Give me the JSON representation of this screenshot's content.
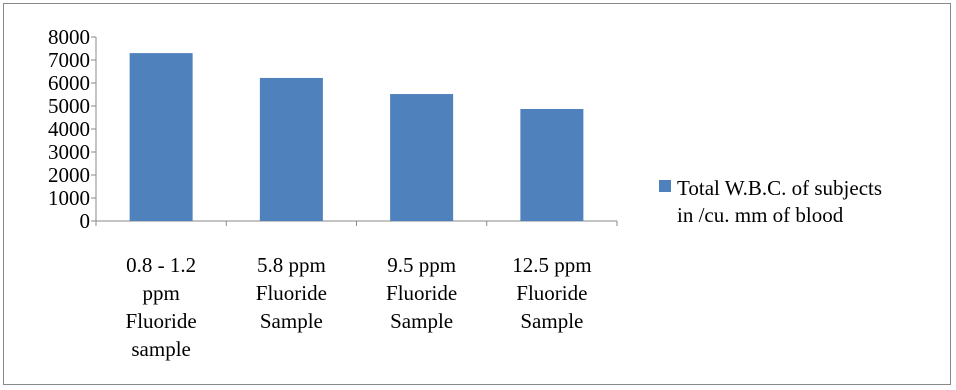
{
  "chart_data": {
    "type": "bar",
    "categories": [
      [
        "0.8 - 1.2",
        "ppm",
        "Fluoride",
        "sample"
      ],
      [
        "5.8 ppm",
        "Fluoride",
        "Sample"
      ],
      [
        "9.5 ppm",
        "Fluoride",
        "Sample"
      ],
      [
        "12.5 ppm",
        "Fluoride",
        "Sample"
      ]
    ],
    "series": [
      {
        "name": "Total W.B.C. of subjects in /cu. mm of blood",
        "values": [
          7300,
          6220,
          5520,
          4870
        ]
      }
    ],
    "legend_lines": [
      "Total W.B.C. of subjects",
      "in /cu. mm of blood"
    ],
    "yticks": [
      0,
      1000,
      2000,
      3000,
      4000,
      5000,
      6000,
      7000,
      8000
    ],
    "ylim": [
      0,
      8000
    ],
    "grid": false,
    "legend_position": "right",
    "colors": {
      "bar": "#4f81bd",
      "axis": "#8a8a8a",
      "frame": "#8a8a8a"
    }
  }
}
